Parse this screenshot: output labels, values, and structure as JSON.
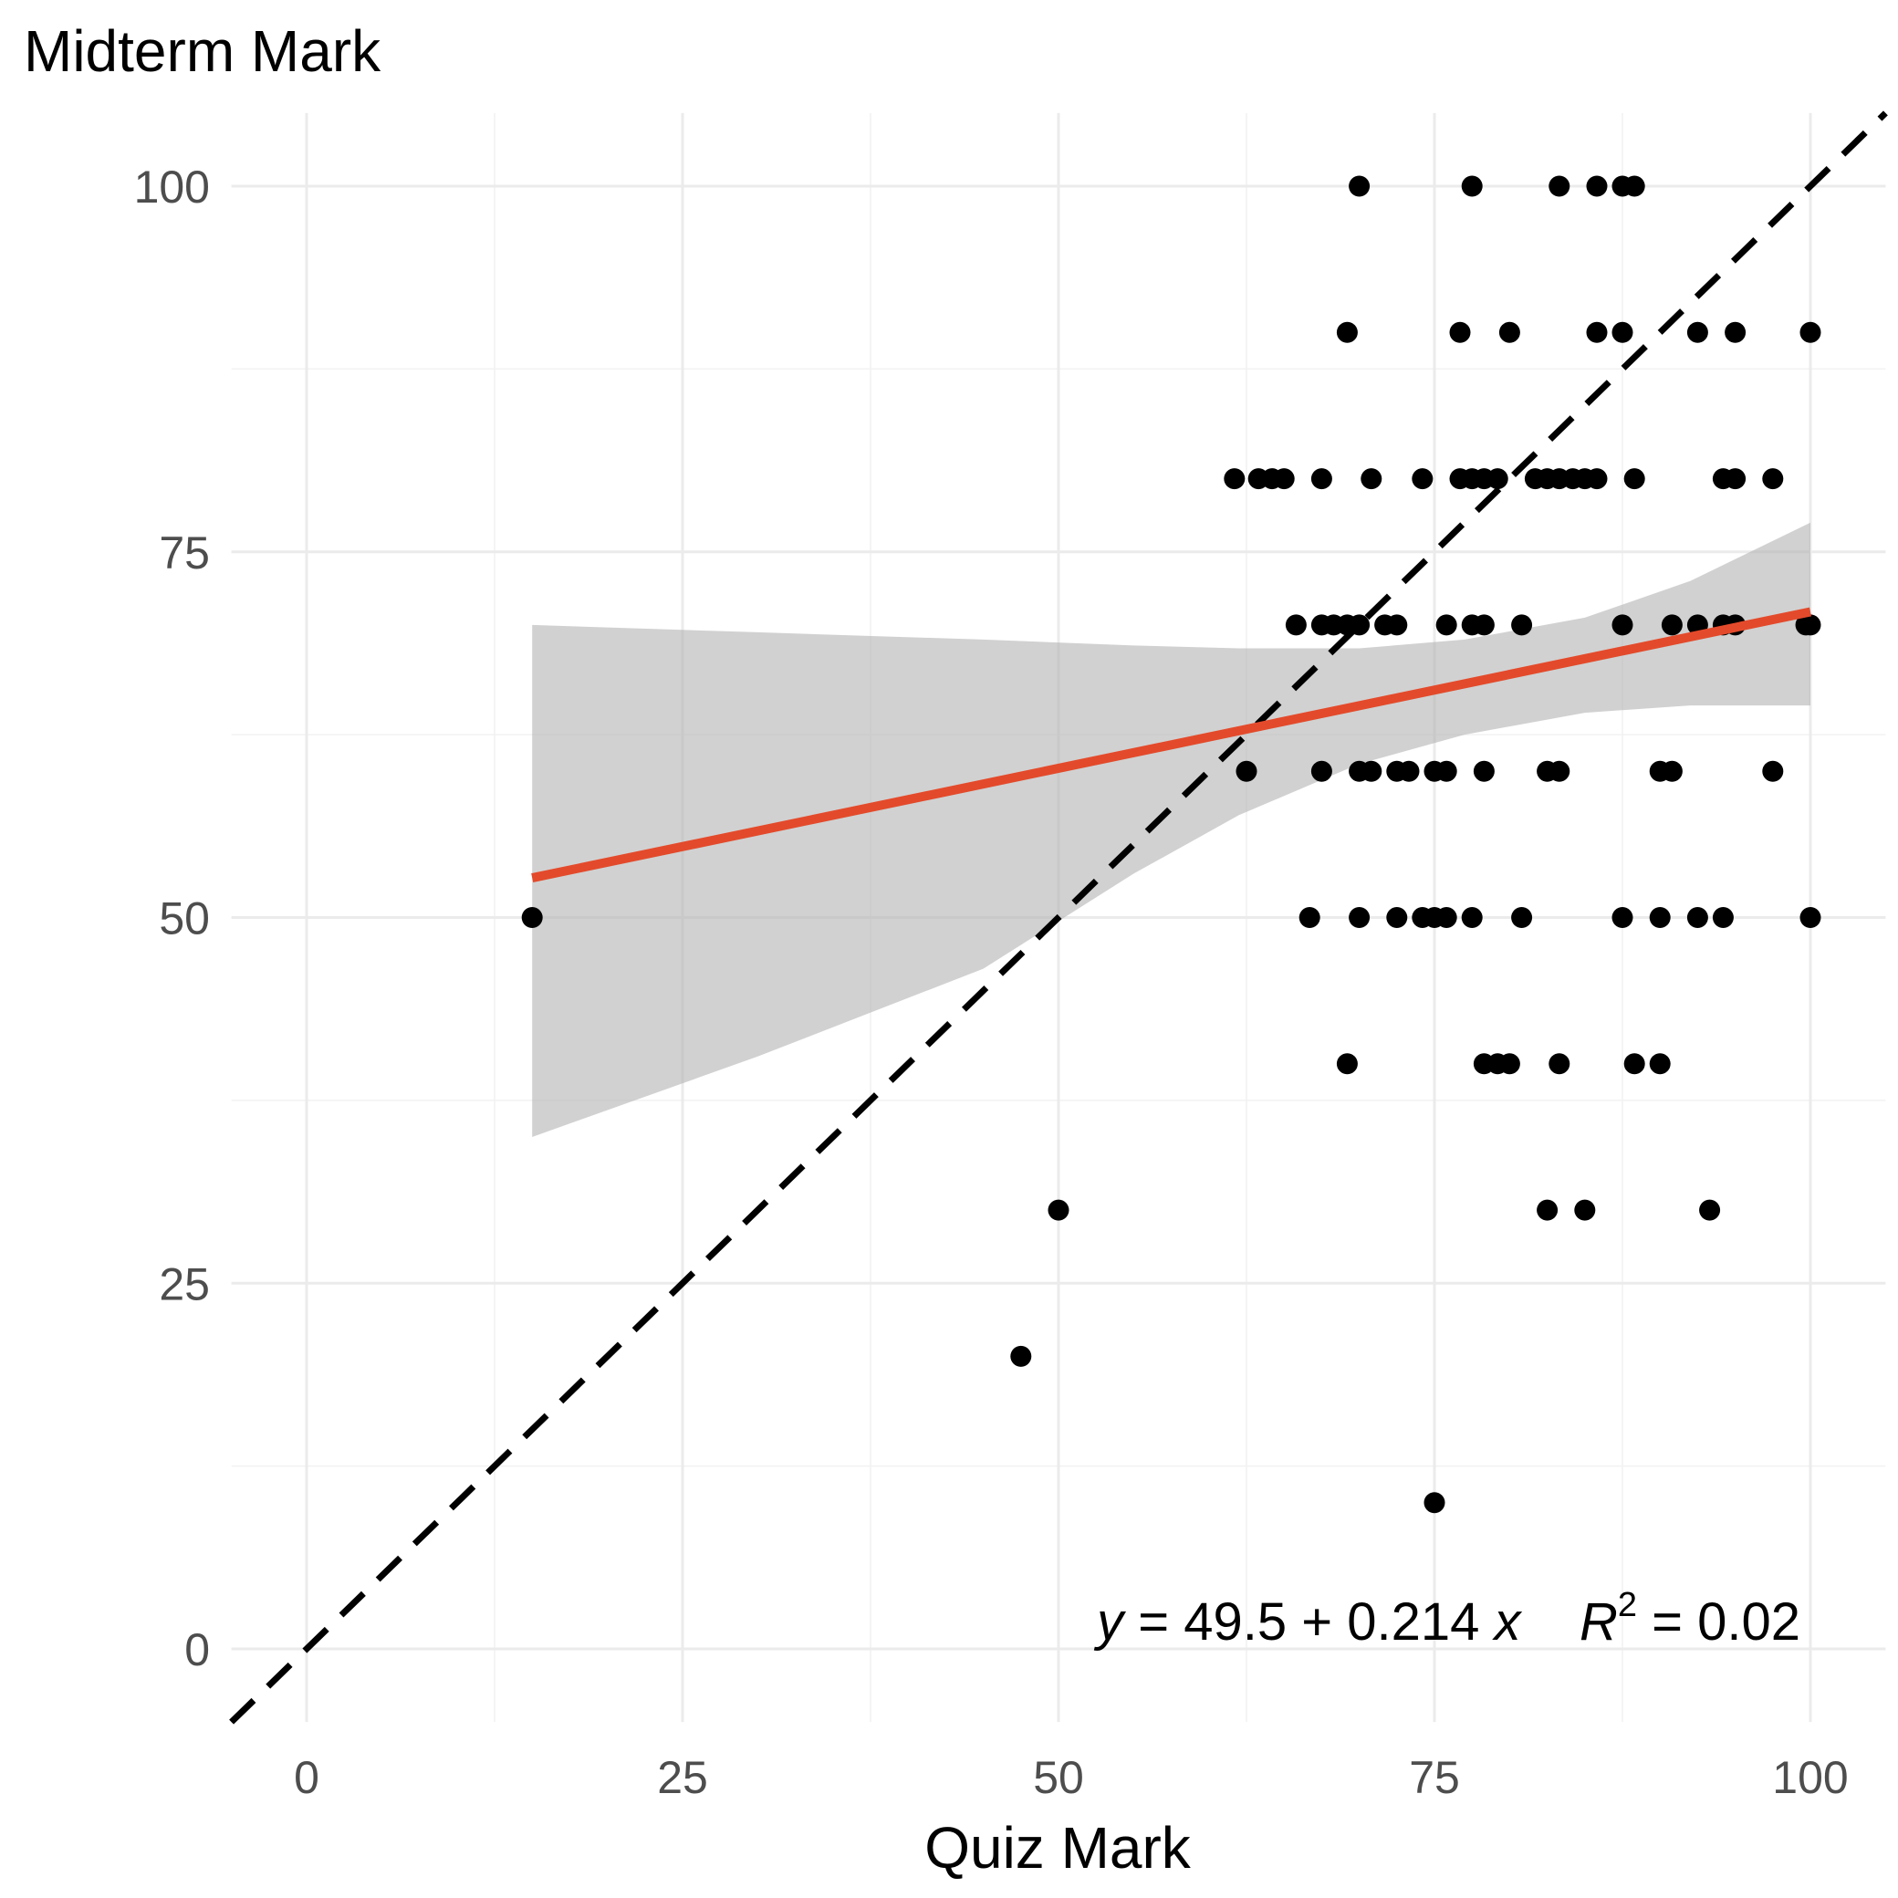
{
  "chart_data": {
    "type": "scatter",
    "title": "",
    "xlabel": "Quiz Mark",
    "ylabel": "Midterm Mark",
    "xlim": [
      -5,
      105
    ],
    "ylim": [
      -5,
      105
    ],
    "x_ticks": [
      "0",
      "25",
      "50",
      "75",
      "100"
    ],
    "y_ticks": [
      "0",
      "25",
      "50",
      "75",
      "100"
    ],
    "grid": true,
    "colors": {
      "points": "#000000",
      "fit_line": "#e34a2b",
      "confidence_band": "#b3b3b3",
      "identity_line": "#000000"
    },
    "annotation": {
      "y_var": "y",
      "equation_body": " = 49.5 + 0.214 ",
      "x_var": "x",
      "r_var": "R",
      "r_exp": "2",
      "r_value": " = 0.02"
    },
    "fit_line": {
      "intercept": 49.5,
      "slope": 0.214,
      "x_range": [
        15,
        100
      ]
    },
    "confidence_band": {
      "x": [
        15,
        30,
        45,
        55,
        62,
        70,
        77,
        85,
        92,
        100
      ],
      "upper": [
        70,
        69.5,
        69,
        68.6,
        68.4,
        68.4,
        69,
        70.5,
        73,
        77
      ],
      "lower": [
        35,
        40.5,
        46.5,
        53,
        57,
        60.5,
        62.5,
        64,
        64.5,
        64.5
      ]
    },
    "points": [
      {
        "x": 15,
        "y": 50
      },
      {
        "x": 47.5,
        "y": 20
      },
      {
        "x": 50,
        "y": 30
      },
      {
        "x": 70,
        "y": 100
      },
      {
        "x": 77.5,
        "y": 100
      },
      {
        "x": 83.3,
        "y": 100
      },
      {
        "x": 85.8,
        "y": 100
      },
      {
        "x": 87.5,
        "y": 100
      },
      {
        "x": 88.3,
        "y": 100
      },
      {
        "x": 69.2,
        "y": 90
      },
      {
        "x": 76.7,
        "y": 90
      },
      {
        "x": 80,
        "y": 90
      },
      {
        "x": 85.8,
        "y": 90
      },
      {
        "x": 87.5,
        "y": 90
      },
      {
        "x": 92.5,
        "y": 90
      },
      {
        "x": 95,
        "y": 90
      },
      {
        "x": 100,
        "y": 90
      },
      {
        "x": 61.7,
        "y": 80
      },
      {
        "x": 63.3,
        "y": 80
      },
      {
        "x": 64.2,
        "y": 80
      },
      {
        "x": 65,
        "y": 80
      },
      {
        "x": 67.5,
        "y": 80
      },
      {
        "x": 70.8,
        "y": 80
      },
      {
        "x": 74.2,
        "y": 80
      },
      {
        "x": 76.7,
        "y": 80
      },
      {
        "x": 77.5,
        "y": 80
      },
      {
        "x": 78.3,
        "y": 80
      },
      {
        "x": 79.2,
        "y": 80
      },
      {
        "x": 81.7,
        "y": 80
      },
      {
        "x": 82.5,
        "y": 80
      },
      {
        "x": 83.3,
        "y": 80
      },
      {
        "x": 84.2,
        "y": 80
      },
      {
        "x": 85,
        "y": 80
      },
      {
        "x": 85.8,
        "y": 80
      },
      {
        "x": 88.3,
        "y": 80
      },
      {
        "x": 94.2,
        "y": 80
      },
      {
        "x": 95,
        "y": 80
      },
      {
        "x": 97.5,
        "y": 80
      },
      {
        "x": 65.8,
        "y": 70
      },
      {
        "x": 67.5,
        "y": 70
      },
      {
        "x": 68.3,
        "y": 70
      },
      {
        "x": 69.2,
        "y": 70
      },
      {
        "x": 70,
        "y": 70
      },
      {
        "x": 71.7,
        "y": 70
      },
      {
        "x": 72.5,
        "y": 70
      },
      {
        "x": 75.8,
        "y": 70
      },
      {
        "x": 77.5,
        "y": 70
      },
      {
        "x": 78.3,
        "y": 70
      },
      {
        "x": 80.8,
        "y": 70
      },
      {
        "x": 87.5,
        "y": 70
      },
      {
        "x": 90.8,
        "y": 70
      },
      {
        "x": 92.5,
        "y": 70
      },
      {
        "x": 94.2,
        "y": 70
      },
      {
        "x": 95,
        "y": 70
      },
      {
        "x": 99.7,
        "y": 70
      },
      {
        "x": 100,
        "y": 70
      },
      {
        "x": 62.5,
        "y": 60
      },
      {
        "x": 67.5,
        "y": 60
      },
      {
        "x": 70,
        "y": 60
      },
      {
        "x": 70.8,
        "y": 60
      },
      {
        "x": 72.5,
        "y": 60
      },
      {
        "x": 73.3,
        "y": 60
      },
      {
        "x": 75,
        "y": 60
      },
      {
        "x": 75.8,
        "y": 60
      },
      {
        "x": 78.3,
        "y": 60
      },
      {
        "x": 82.5,
        "y": 60
      },
      {
        "x": 83.3,
        "y": 60
      },
      {
        "x": 90,
        "y": 60
      },
      {
        "x": 90.8,
        "y": 60
      },
      {
        "x": 97.5,
        "y": 60
      },
      {
        "x": 66.7,
        "y": 50
      },
      {
        "x": 70,
        "y": 50
      },
      {
        "x": 72.5,
        "y": 50
      },
      {
        "x": 74.2,
        "y": 50
      },
      {
        "x": 75,
        "y": 50
      },
      {
        "x": 75.8,
        "y": 50
      },
      {
        "x": 77.5,
        "y": 50
      },
      {
        "x": 80.8,
        "y": 50
      },
      {
        "x": 87.5,
        "y": 50
      },
      {
        "x": 90,
        "y": 50
      },
      {
        "x": 92.5,
        "y": 50
      },
      {
        "x": 94.2,
        "y": 50
      },
      {
        "x": 100,
        "y": 50
      },
      {
        "x": 69.2,
        "y": 40
      },
      {
        "x": 78.3,
        "y": 40
      },
      {
        "x": 79.2,
        "y": 40
      },
      {
        "x": 80,
        "y": 40
      },
      {
        "x": 83.3,
        "y": 40
      },
      {
        "x": 88.3,
        "y": 40
      },
      {
        "x": 90,
        "y": 40
      },
      {
        "x": 82.5,
        "y": 30
      },
      {
        "x": 85,
        "y": 30
      },
      {
        "x": 93.3,
        "y": 30
      },
      {
        "x": 75,
        "y": 10
      }
    ]
  }
}
